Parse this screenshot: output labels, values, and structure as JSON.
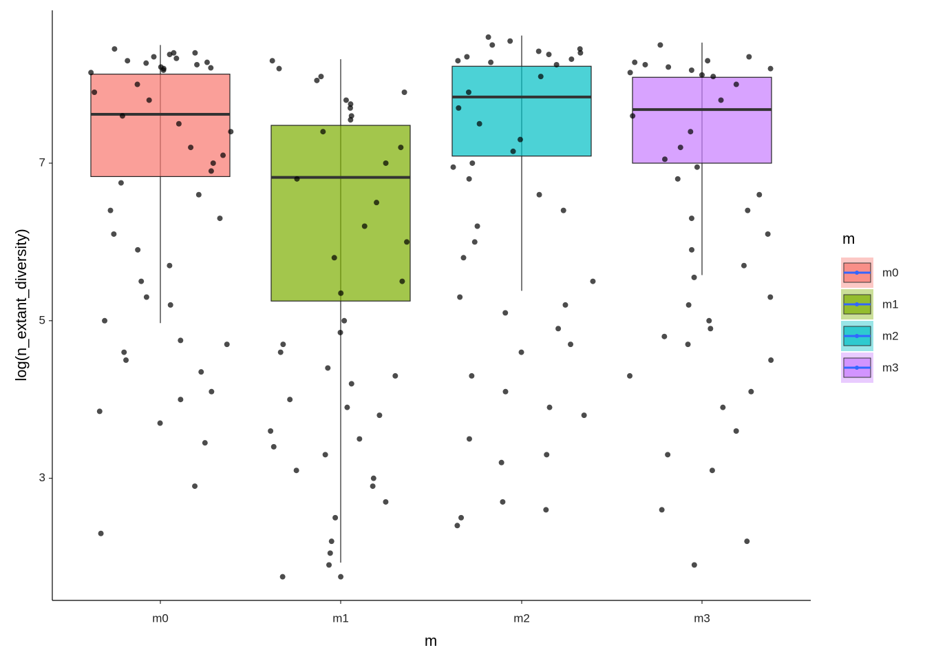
{
  "chart_data": {
    "type": "box",
    "x_label": "m",
    "y_label": "log(n_extant_diversity)",
    "legend_title": "m",
    "categories": [
      "m0",
      "m1",
      "m2",
      "m3"
    ],
    "ylim": [
      1.45,
      8.94
    ],
    "yticks": [
      3,
      5,
      7
    ],
    "series": [
      {
        "name": "m0",
        "color": "#F8766D",
        "whisker_low": 4.97,
        "q1": 6.83,
        "median": 7.62,
        "q3": 8.13,
        "whisker_high": 8.5,
        "points": [
          8.45,
          8.4,
          8.38,
          8.35,
          8.3,
          8.28,
          8.25,
          8.22,
          8.2,
          8.18,
          8.15,
          8.4,
          8.33,
          8.27,
          8.21,
          8.0,
          7.8,
          7.6,
          7.4,
          7.2,
          7.0,
          6.9,
          7.9,
          7.5,
          7.1,
          6.75,
          6.6,
          6.4,
          6.3,
          6.1,
          5.9,
          5.7,
          5.5,
          5.3,
          5.2,
          5.0,
          4.75,
          4.7,
          4.6,
          4.5,
          4.35,
          4.1,
          4.0,
          3.85,
          3.7,
          3.45,
          2.9,
          2.3
        ]
      },
      {
        "name": "m1",
        "color": "#7CAE00",
        "whisker_low": 1.93,
        "q1": 5.25,
        "median": 6.82,
        "q3": 7.48,
        "whisker_high": 8.32,
        "points": [
          8.3,
          8.2,
          8.1,
          8.05,
          7.9,
          7.8,
          7.75,
          7.7,
          7.6,
          7.55,
          7.4,
          7.2,
          7.0,
          6.8,
          6.5,
          6.2,
          6.0,
          5.8,
          5.5,
          5.35,
          5.0,
          4.85,
          4.7,
          4.6,
          4.4,
          4.3,
          4.2,
          4.0,
          3.9,
          3.8,
          3.6,
          3.5,
          3.4,
          3.3,
          3.1,
          3.0,
          2.9,
          2.7,
          2.5,
          2.2,
          2.05,
          1.9,
          1.75,
          1.75
        ]
      },
      {
        "name": "m2",
        "color": "#00BFC4",
        "whisker_low": 5.38,
        "q1": 7.09,
        "median": 7.84,
        "q3": 8.23,
        "whisker_high": 8.62,
        "points": [
          8.6,
          8.55,
          8.5,
          8.45,
          8.42,
          8.4,
          8.38,
          8.35,
          8.32,
          8.3,
          8.28,
          8.25,
          8.1,
          7.9,
          7.7,
          7.5,
          7.3,
          7.15,
          7.0,
          6.95,
          6.8,
          6.6,
          6.4,
          6.2,
          6.0,
          5.8,
          5.5,
          5.3,
          5.2,
          5.1,
          4.9,
          4.7,
          4.6,
          4.3,
          4.1,
          3.9,
          3.8,
          3.5,
          3.3,
          3.2,
          2.7,
          2.6,
          2.5,
          2.4
        ]
      },
      {
        "name": "m3",
        "color": "#C77CFF",
        "whisker_low": 5.58,
        "q1": 7.0,
        "median": 7.68,
        "q3": 8.09,
        "whisker_high": 8.53,
        "points": [
          8.5,
          8.35,
          8.3,
          8.28,
          8.25,
          8.22,
          8.2,
          8.18,
          8.15,
          8.12,
          8.1,
          8.0,
          7.8,
          7.6,
          7.4,
          7.2,
          7.05,
          6.95,
          6.8,
          6.6,
          6.4,
          6.3,
          6.1,
          5.9,
          5.7,
          5.55,
          5.3,
          5.2,
          5.0,
          4.9,
          4.8,
          4.7,
          4.5,
          4.3,
          4.1,
          3.9,
          3.6,
          3.3,
          3.1,
          2.6,
          2.2,
          1.9
        ]
      }
    ]
  }
}
